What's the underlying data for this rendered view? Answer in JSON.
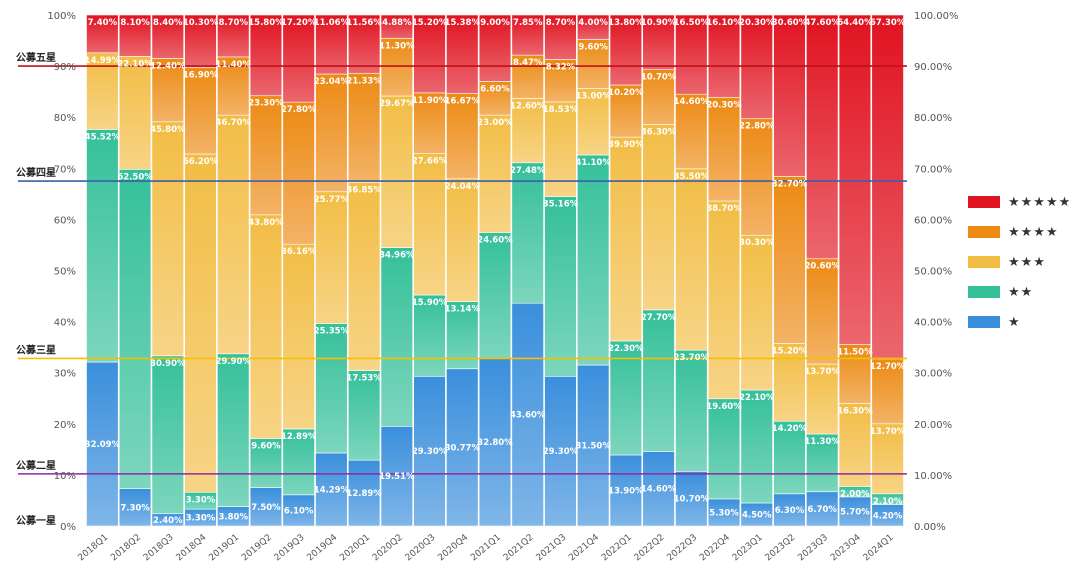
{
  "colors": {
    "s1": "#3a8fdc",
    "s2": "#35c09a",
    "s3": "#f2bd45",
    "s4": "#ec8a14",
    "s5": "#e01320",
    "line_one": "#8a2aa8",
    "line_two": "#8a2aa8",
    "line_three": "#f2c200",
    "line_four": "#3a60a8",
    "line_five": "#c0101a"
  },
  "legend": [
    {
      "label": "★★★★★",
      "series": "s5"
    },
    {
      "label": "★★★★",
      "series": "s4"
    },
    {
      "label": "★★★",
      "series": "s3"
    },
    {
      "label": "★★",
      "series": "s2"
    },
    {
      "label": "★",
      "series": "s1"
    }
  ],
  "chart_data": {
    "type": "bar",
    "stacked": true,
    "categories": [
      "2018Q1",
      "2018Q2",
      "2018Q3",
      "2018Q4",
      "2019Q1",
      "2019Q2",
      "2019Q3",
      "2019Q4",
      "2020Q1",
      "2020Q2",
      "2020Q3",
      "2020Q4",
      "2021Q1",
      "2021Q2",
      "2021Q3",
      "2021Q4",
      "2022Q1",
      "2022Q2",
      "2022Q3",
      "2022Q4",
      "2023Q1",
      "2023Q2",
      "2023Q3",
      "2023Q4",
      "2024Q1"
    ],
    "series": [
      {
        "key": "s1",
        "values": [
          32.09,
          7.3,
          2.4,
          3.3,
          3.8,
          7.5,
          6.1,
          14.29,
          12.89,
          19.51,
          29.3,
          30.77,
          32.8,
          43.6,
          29.3,
          31.5,
          13.9,
          14.6,
          10.7,
          5.3,
          4.5,
          6.3,
          6.7,
          5.7,
          4.2
        ]
      },
      {
        "key": "s2",
        "values": [
          45.52,
          62.5,
          30.9,
          3.3,
          29.9,
          9.6,
          12.89,
          25.35,
          17.53,
          34.96,
          15.9,
          13.14,
          24.6,
          27.48,
          35.16,
          41.1,
          22.3,
          27.7,
          23.7,
          19.6,
          22.1,
          14.2,
          11.3,
          2.0,
          2.1
        ]
      },
      {
        "key": "s3",
        "values": [
          14.99,
          22.1,
          45.8,
          66.2,
          46.7,
          43.8,
          36.16,
          25.77,
          36.85,
          29.67,
          27.66,
          24.04,
          23.0,
          12.6,
          18.53,
          13.0,
          39.9,
          36.3,
          35.5,
          38.7,
          30.3,
          15.2,
          13.7,
          16.3,
          13.7
        ]
      },
      {
        "key": "s4",
        "values": [
          0,
          0,
          12.4,
          16.9,
          11.4,
          23.3,
          27.8,
          23.04,
          21.33,
          11.3,
          11.9,
          16.67,
          6.6,
          8.47,
          8.32,
          9.6,
          10.2,
          10.7,
          14.6,
          20.3,
          22.8,
          32.7,
          20.6,
          11.5,
          12.7
        ]
      },
      {
        "key": "s5",
        "values": [
          7.4,
          8.1,
          8.4,
          10.3,
          8.7,
          15.8,
          17.2,
          11.06,
          11.56,
          4.88,
          15.2,
          15.38,
          9.0,
          7.85,
          8.7,
          4.0,
          13.8,
          10.9,
          16.5,
          16.1,
          20.3,
          30.6,
          47.6,
          64.4,
          67.3
        ]
      }
    ],
    "labels": {
      "s1": [
        "32.09%",
        "7.30%",
        "2.40%",
        "3.30%",
        "3.80%",
        "7.50%",
        "6.10%",
        "14.29%",
        "12.89%",
        "19.51%",
        "29.30%",
        "30.77%",
        "32.80%",
        "43.60%",
        "29.30%",
        "31.50%",
        "13.90%",
        "14.60%",
        "10.70%",
        "5.30%",
        "4.50%",
        "6.30%",
        "6.70%",
        "5.70%",
        "4.20%"
      ],
      "s2": [
        "45.52%",
        "62.50%",
        "30.90%",
        "3.30%",
        "29.90%",
        "9.60%",
        "12.89%",
        "25.35%",
        "17.53%",
        "34.96%",
        "15.90%",
        "13.14%",
        "24.60%",
        "27.48%",
        "35.16%",
        "41.10%",
        "22.30%",
        "27.70%",
        "23.70%",
        "19.60%",
        "22.10%",
        "14.20%",
        "11.30%",
        "2.00%",
        "2.10%"
      ],
      "s3": [
        "14.99%",
        "22.10%",
        "45.80%",
        "66.20%",
        "46.70%",
        "43.80%",
        "36.16%",
        "25.77%",
        "36.85%",
        "29.67%",
        "27.66%",
        "24.04%",
        "23.00%",
        "12.60%",
        "18.53%",
        "13.00%",
        "39.90%",
        "36.30%",
        "35.50%",
        "38.70%",
        "30.30%",
        "15.20%",
        "13.70%",
        "16.30%",
        "13.70%"
      ],
      "s4": [
        "",
        "",
        "12.40%",
        "16.90%",
        "11.40%",
        "23.30%",
        "27.80%",
        "23.04%",
        "21.33%",
        "11.30%",
        "11.90%",
        "16.67%",
        "6.60%",
        "8.47%",
        "8.32%",
        "9.60%",
        "10.20%",
        "10.70%",
        "14.60%",
        "20.30%",
        "22.80%",
        "32.70%",
        "20.60%",
        "11.50%",
        "12.70%"
      ],
      "s5": [
        "7.40%",
        "8.10%",
        "8.40%",
        "10.30%",
        "8.70%",
        "15.80%",
        "17.20%",
        "11.06%",
        "11.56%",
        "4.88%",
        "15.20%",
        "15.38%",
        "9.00%",
        "7.85%",
        "8.70%",
        "4.00%",
        "13.80%",
        "10.90%",
        "16.50%",
        "16.10%",
        "20.30%",
        "30.60%",
        "47.60%",
        "64.40%",
        "67.30%"
      ]
    },
    "left_ticks": [
      "0%",
      "10%",
      "20%",
      "30%",
      "40%",
      "50%",
      "60%",
      "70%",
      "80%",
      "90%",
      "100%"
    ],
    "right_ticks": [
      "0.00%",
      "10.00%",
      "20.00%",
      "30.00%",
      "40.00%",
      "50.00%",
      "60.00%",
      "70.00%",
      "80.00%",
      "90.00%",
      "100.00%"
    ],
    "ylim": [
      0,
      100
    ],
    "reference_lines": [
      {
        "label": "公募一星",
        "value": 0,
        "color_key": "line_one",
        "draw": false
      },
      {
        "label": "公募二星",
        "value": 10.2,
        "color_key": "line_two",
        "draw": true
      },
      {
        "label": "公募三星",
        "value": 32.8,
        "color_key": "line_three",
        "draw": true
      },
      {
        "label": "公募四星",
        "value": 67.5,
        "color_key": "line_four",
        "draw": true
      },
      {
        "label": "公募五星",
        "value": 90.0,
        "color_key": "line_five",
        "draw": true
      }
    ],
    "legend_position": "right"
  }
}
